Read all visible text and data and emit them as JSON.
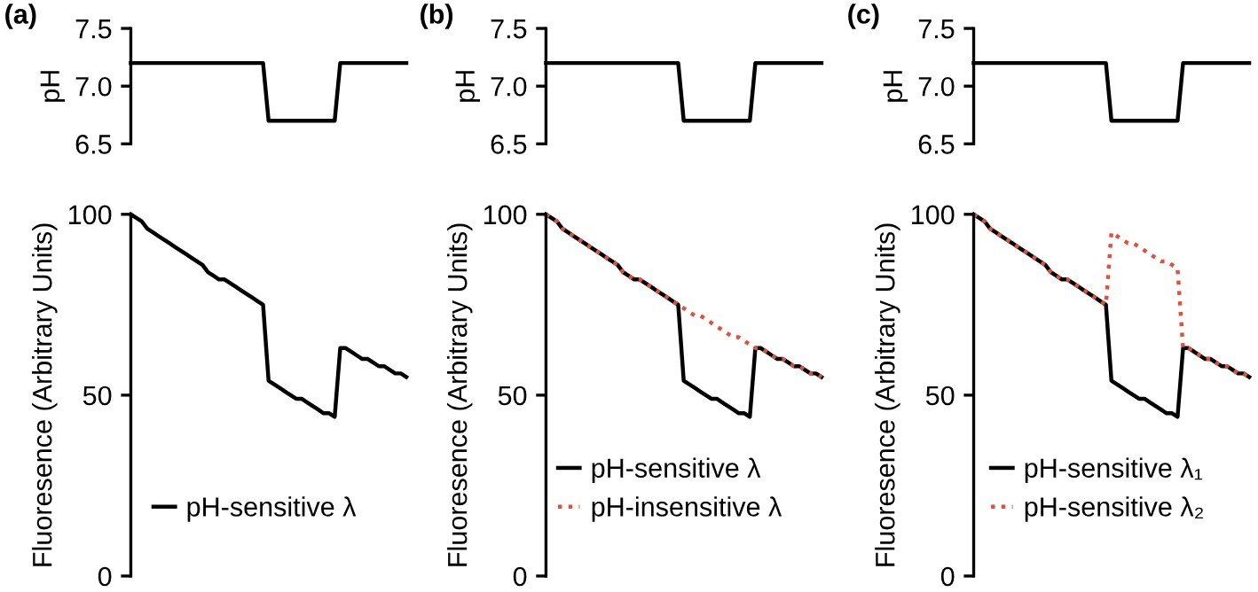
{
  "chart_data": [
    {
      "type": "line",
      "title": "(a)",
      "ylabel": "pH",
      "ylim": [
        6.5,
        7.5
      ],
      "yticks": [
        {
          "value": 6.5,
          "label": "6.5"
        },
        {
          "value": 7.0,
          "label": "7.0"
        },
        {
          "value": 7.5,
          "label": "7.5"
        }
      ],
      "tick_labels": "y",
      "legend": false,
      "categories": [
        null,
        null,
        null,
        null,
        null,
        null,
        null,
        null,
        null,
        null,
        null,
        null,
        null,
        null,
        null,
        null,
        null,
        null,
        null,
        null,
        null,
        null,
        null,
        null,
        null,
        null,
        null,
        null,
        null,
        null,
        null,
        null,
        null,
        null,
        null,
        null,
        null,
        null,
        null,
        null,
        null,
        null,
        null,
        null,
        null,
        null,
        null,
        null,
        null,
        null,
        null
      ],
      "series": [
        {
          "color": "#000000",
          "values": [
            7.2,
            7.2,
            7.2,
            7.2,
            7.2,
            7.2,
            7.2,
            7.2,
            7.2,
            7.2,
            7.2,
            7.2,
            7.2,
            7.2,
            7.2,
            7.2,
            7.2,
            7.2,
            7.2,
            7.2,
            7.2,
            7.2,
            7.2,
            7.2,
            7.2,
            6.7,
            6.7,
            6.7,
            6.7,
            6.7,
            6.7,
            6.7,
            6.7,
            6.7,
            6.7,
            6.7,
            6.7,
            6.7,
            7.2,
            7.2,
            7.2,
            7.2,
            7.2,
            7.2,
            7.2,
            7.2,
            7.2,
            7.2,
            7.2,
            7.2,
            7.2
          ]
        }
      ]
    },
    {
      "type": "line",
      "title": "(b)",
      "ylabel": "pH",
      "ylim": [
        6.5,
        7.5
      ],
      "yticks": [
        {
          "value": 6.5,
          "label": "6.5"
        },
        {
          "value": 7.0,
          "label": "7.0"
        },
        {
          "value": 7.5,
          "label": "7.5"
        }
      ],
      "tick_labels": "y",
      "legend": false,
      "categories": [
        null,
        null,
        null,
        null,
        null,
        null,
        null,
        null,
        null,
        null,
        null,
        null,
        null,
        null,
        null,
        null,
        null,
        null,
        null,
        null,
        null,
        null,
        null,
        null,
        null,
        null,
        null,
        null,
        null,
        null,
        null,
        null,
        null,
        null,
        null,
        null,
        null,
        null,
        null,
        null,
        null,
        null,
        null,
        null,
        null,
        null,
        null,
        null,
        null,
        null,
        null
      ],
      "series": [
        {
          "color": "#000000",
          "values": [
            7.2,
            7.2,
            7.2,
            7.2,
            7.2,
            7.2,
            7.2,
            7.2,
            7.2,
            7.2,
            7.2,
            7.2,
            7.2,
            7.2,
            7.2,
            7.2,
            7.2,
            7.2,
            7.2,
            7.2,
            7.2,
            7.2,
            7.2,
            7.2,
            7.2,
            6.7,
            6.7,
            6.7,
            6.7,
            6.7,
            6.7,
            6.7,
            6.7,
            6.7,
            6.7,
            6.7,
            6.7,
            6.7,
            7.2,
            7.2,
            7.2,
            7.2,
            7.2,
            7.2,
            7.2,
            7.2,
            7.2,
            7.2,
            7.2,
            7.2,
            7.2
          ]
        }
      ]
    },
    {
      "type": "line",
      "title": "(c)",
      "ylabel": "pH",
      "ylim": [
        6.5,
        7.5
      ],
      "yticks": [
        {
          "value": 6.5,
          "label": "6.5"
        },
        {
          "value": 7.0,
          "label": "7.0"
        },
        {
          "value": 7.5,
          "label": "7.5"
        }
      ],
      "tick_labels": "y",
      "legend": false,
      "categories": [
        null,
        null,
        null,
        null,
        null,
        null,
        null,
        null,
        null,
        null,
        null,
        null,
        null,
        null,
        null,
        null,
        null,
        null,
        null,
        null,
        null,
        null,
        null,
        null,
        null,
        null,
        null,
        null,
        null,
        null,
        null,
        null,
        null,
        null,
        null,
        null,
        null,
        null,
        null,
        null,
        null,
        null,
        null,
        null,
        null,
        null,
        null,
        null,
        null,
        null,
        null
      ],
      "series": [
        {
          "color": "#000000",
          "values": [
            7.2,
            7.2,
            7.2,
            7.2,
            7.2,
            7.2,
            7.2,
            7.2,
            7.2,
            7.2,
            7.2,
            7.2,
            7.2,
            7.2,
            7.2,
            7.2,
            7.2,
            7.2,
            7.2,
            7.2,
            7.2,
            7.2,
            7.2,
            7.2,
            7.2,
            6.7,
            6.7,
            6.7,
            6.7,
            6.7,
            6.7,
            6.7,
            6.7,
            6.7,
            6.7,
            6.7,
            6.7,
            6.7,
            7.2,
            7.2,
            7.2,
            7.2,
            7.2,
            7.2,
            7.2,
            7.2,
            7.2,
            7.2,
            7.2,
            7.2,
            7.2
          ]
        }
      ]
    },
    {
      "type": "line",
      "ylabel": "Fluoresence (Arbitrary Units)",
      "ylim": [
        0,
        100
      ],
      "yticks": [
        0,
        50,
        100
      ],
      "tick_labels": "y",
      "legend": "bottom",
      "categories": [
        null,
        null,
        null,
        null,
        null,
        null,
        null,
        null,
        null,
        null,
        null,
        null,
        null,
        null,
        null,
        null,
        null,
        null,
        null,
        null,
        null,
        null,
        null,
        null,
        null,
        null,
        null,
        null,
        null,
        null,
        null,
        null,
        null,
        null,
        null,
        null,
        null,
        null,
        null,
        null,
        null,
        null,
        null,
        null,
        null,
        null,
        null,
        null,
        null,
        null,
        null
      ],
      "series": [
        {
          "name": "pH-sensitive λ",
          "color": "#000000",
          "line_style": "solid",
          "values": [
            100,
            99,
            98,
            96,
            95,
            94,
            93,
            92,
            91,
            90,
            89,
            88,
            87,
            86,
            84,
            83,
            82,
            82,
            81,
            80,
            79,
            78,
            77,
            76,
            75,
            54,
            53,
            52,
            51,
            50,
            49,
            49,
            48,
            47,
            46,
            45,
            45,
            44,
            63,
            63,
            62,
            61,
            60,
            60,
            59,
            58,
            58,
            57,
            56,
            56,
            55
          ]
        }
      ]
    },
    {
      "type": "line",
      "ylabel": "Fluoresence (Arbitrary Units)",
      "ylim": [
        0,
        100
      ],
      "yticks": [
        0,
        50,
        100
      ],
      "tick_labels": "y",
      "legend": "bottom",
      "categories": [
        null,
        null,
        null,
        null,
        null,
        null,
        null,
        null,
        null,
        null,
        null,
        null,
        null,
        null,
        null,
        null,
        null,
        null,
        null,
        null,
        null,
        null,
        null,
        null,
        null,
        null,
        null,
        null,
        null,
        null,
        null,
        null,
        null,
        null,
        null,
        null,
        null,
        null,
        null,
        null,
        null,
        null,
        null,
        null,
        null,
        null,
        null,
        null,
        null,
        null,
        null
      ],
      "series": [
        {
          "name": "pH-sensitive λ",
          "color": "#000000",
          "line_style": "solid",
          "values": [
            100,
            99,
            98,
            96,
            95,
            94,
            93,
            92,
            91,
            90,
            89,
            88,
            87,
            86,
            84,
            83,
            82,
            82,
            81,
            80,
            79,
            78,
            77,
            76,
            75,
            54,
            53,
            52,
            51,
            50,
            49,
            49,
            48,
            47,
            46,
            45,
            45,
            44,
            63,
            63,
            62,
            61,
            60,
            60,
            59,
            58,
            58,
            57,
            56,
            56,
            55
          ]
        },
        {
          "name": "pH-insensitive λ",
          "color": "#e0503c",
          "line_style": "dotted",
          "values": [
            100,
            99,
            98,
            96,
            95,
            94,
            93,
            92,
            91,
            90,
            89,
            88,
            87,
            86,
            84,
            83,
            82,
            82,
            81,
            80,
            79,
            78,
            77,
            76,
            75,
            74,
            73,
            72,
            72,
            71,
            70,
            69,
            68,
            67,
            66,
            66,
            65,
            64,
            63,
            63,
            62,
            61,
            60,
            60,
            59,
            58,
            58,
            57,
            56,
            56,
            55
          ]
        }
      ]
    },
    {
      "type": "line",
      "ylabel": "Fluoresence (Arbitrary Units)",
      "ylim": [
        0,
        100
      ],
      "yticks": [
        0,
        50,
        100
      ],
      "tick_labels": "y",
      "legend": "bottom",
      "categories": [
        null,
        null,
        null,
        null,
        null,
        null,
        null,
        null,
        null,
        null,
        null,
        null,
        null,
        null,
        null,
        null,
        null,
        null,
        null,
        null,
        null,
        null,
        null,
        null,
        null,
        null,
        null,
        null,
        null,
        null,
        null,
        null,
        null,
        null,
        null,
        null,
        null,
        null,
        null,
        null,
        null,
        null,
        null,
        null,
        null,
        null,
        null,
        null,
        null,
        null,
        null
      ],
      "series": [
        {
          "name": "pH-sensitive λ₁",
          "color": "#000000",
          "line_style": "solid",
          "values": [
            100,
            99,
            98,
            96,
            95,
            94,
            93,
            92,
            91,
            90,
            89,
            88,
            87,
            86,
            84,
            83,
            82,
            82,
            81,
            80,
            79,
            78,
            77,
            76,
            75,
            54,
            53,
            52,
            51,
            50,
            49,
            49,
            48,
            47,
            46,
            45,
            45,
            44,
            63,
            63,
            62,
            61,
            60,
            60,
            59,
            58,
            58,
            57,
            56,
            56,
            55
          ]
        },
        {
          "name": "pH-sensitive λ₂",
          "color": "#e0503c",
          "line_style": "dotted",
          "values": [
            100,
            99,
            98,
            96,
            95,
            94,
            93,
            92,
            91,
            90,
            89,
            88,
            87,
            86,
            84,
            83,
            82,
            82,
            81,
            80,
            79,
            78,
            77,
            76,
            75,
            95,
            94,
            93,
            92,
            92,
            91,
            90,
            89,
            88,
            87,
            87,
            86,
            85,
            63,
            63,
            62,
            61,
            60,
            60,
            59,
            58,
            58,
            57,
            56,
            56,
            55
          ]
        }
      ]
    }
  ]
}
